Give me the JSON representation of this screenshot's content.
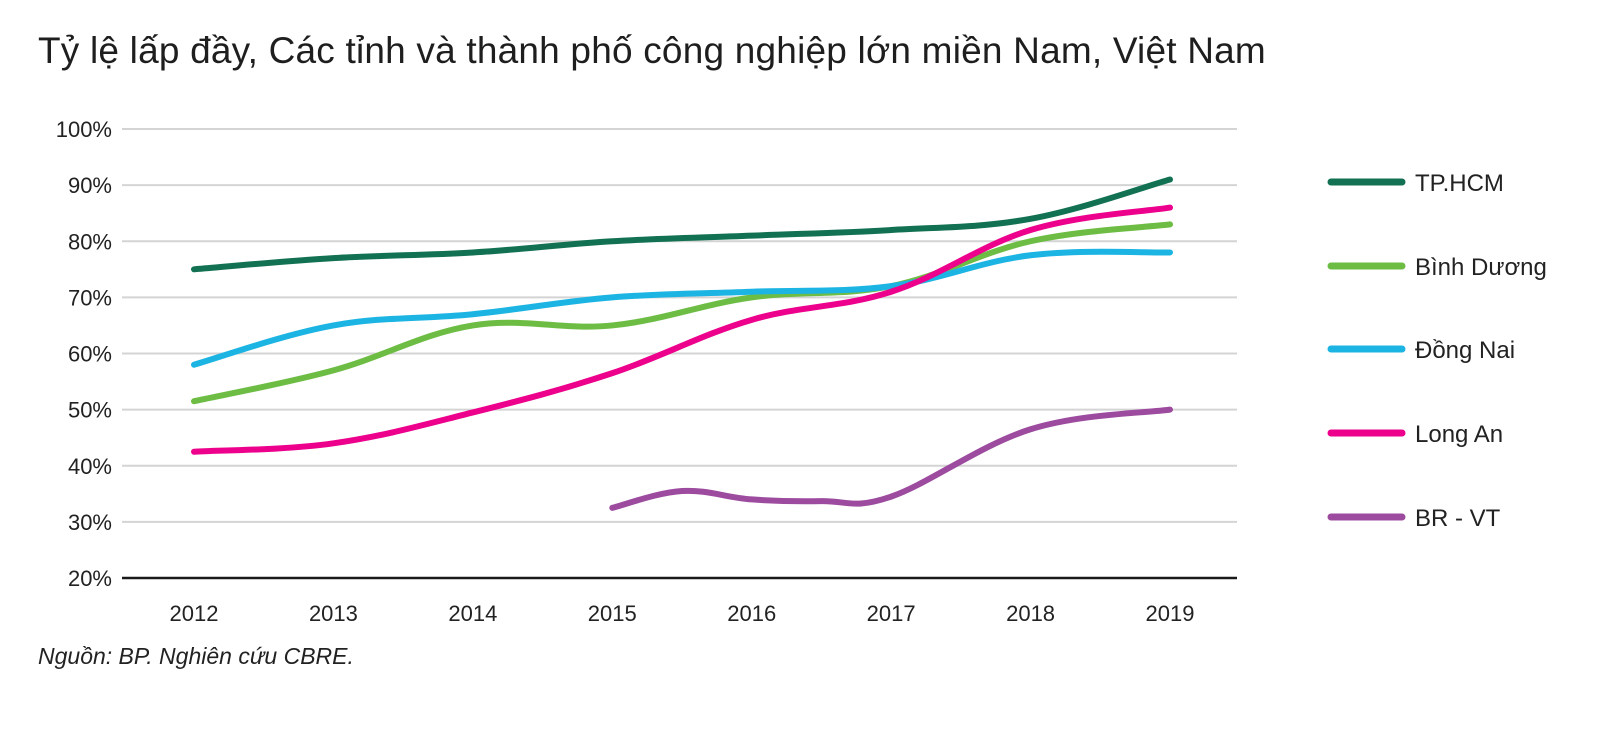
{
  "chart_data": {
    "type": "line",
    "title": "Tỷ lệ lấp đầy, Các tỉnh và thành phố công nghiệp lớn miền Nam, Việt Nam",
    "source": "Nguồn: BP. Nghiên cứu CBRE.",
    "x": [
      "2012",
      "2013",
      "2014",
      "2015",
      "2016",
      "2017",
      "2018",
      "2019"
    ],
    "ylim": [
      20,
      100
    ],
    "yticks": [
      "20%",
      "30%",
      "40%",
      "50%",
      "60%",
      "70%",
      "80%",
      "90%",
      "100%"
    ],
    "grid": true,
    "legend": "right",
    "series": [
      {
        "name": "TP.HCM",
        "color": "#127152",
        "points": [
          [
            2012,
            75
          ],
          [
            2013,
            77
          ],
          [
            2014,
            78
          ],
          [
            2015,
            80
          ],
          [
            2016,
            81
          ],
          [
            2017,
            82
          ],
          [
            2018,
            84
          ],
          [
            2019,
            91
          ]
        ]
      },
      {
        "name": "Bình Dương",
        "color": "#6dbd45",
        "points": [
          [
            2012,
            51.5
          ],
          [
            2013,
            57
          ],
          [
            2014,
            65
          ],
          [
            2015,
            65
          ],
          [
            2016,
            70
          ],
          [
            2017,
            72
          ],
          [
            2018,
            80
          ],
          [
            2019,
            83
          ]
        ]
      },
      {
        "name": "Đồng Nai",
        "color": "#1cb4e3",
        "points": [
          [
            2012,
            58
          ],
          [
            2013,
            65
          ],
          [
            2014,
            67
          ],
          [
            2015,
            70
          ],
          [
            2016,
            71
          ],
          [
            2017,
            72
          ],
          [
            2018,
            77.5
          ],
          [
            2019,
            78
          ]
        ]
      },
      {
        "name": "Long An",
        "color": "#ec008c",
        "points": [
          [
            2012,
            42.5
          ],
          [
            2013,
            44
          ],
          [
            2014,
            49.5
          ],
          [
            2015,
            56.5
          ],
          [
            2016,
            66
          ],
          [
            2017,
            71
          ],
          [
            2018,
            82
          ],
          [
            2019,
            86
          ]
        ]
      },
      {
        "name": "BR - VT",
        "color": "#9c4b9f",
        "points": [
          [
            2015,
            32.5
          ],
          [
            2015.5,
            35.5
          ],
          [
            2016,
            34
          ],
          [
            2016.5,
            33.7
          ],
          [
            2017,
            34.5
          ],
          [
            2018,
            46.5
          ],
          [
            2019,
            50
          ]
        ]
      }
    ]
  }
}
